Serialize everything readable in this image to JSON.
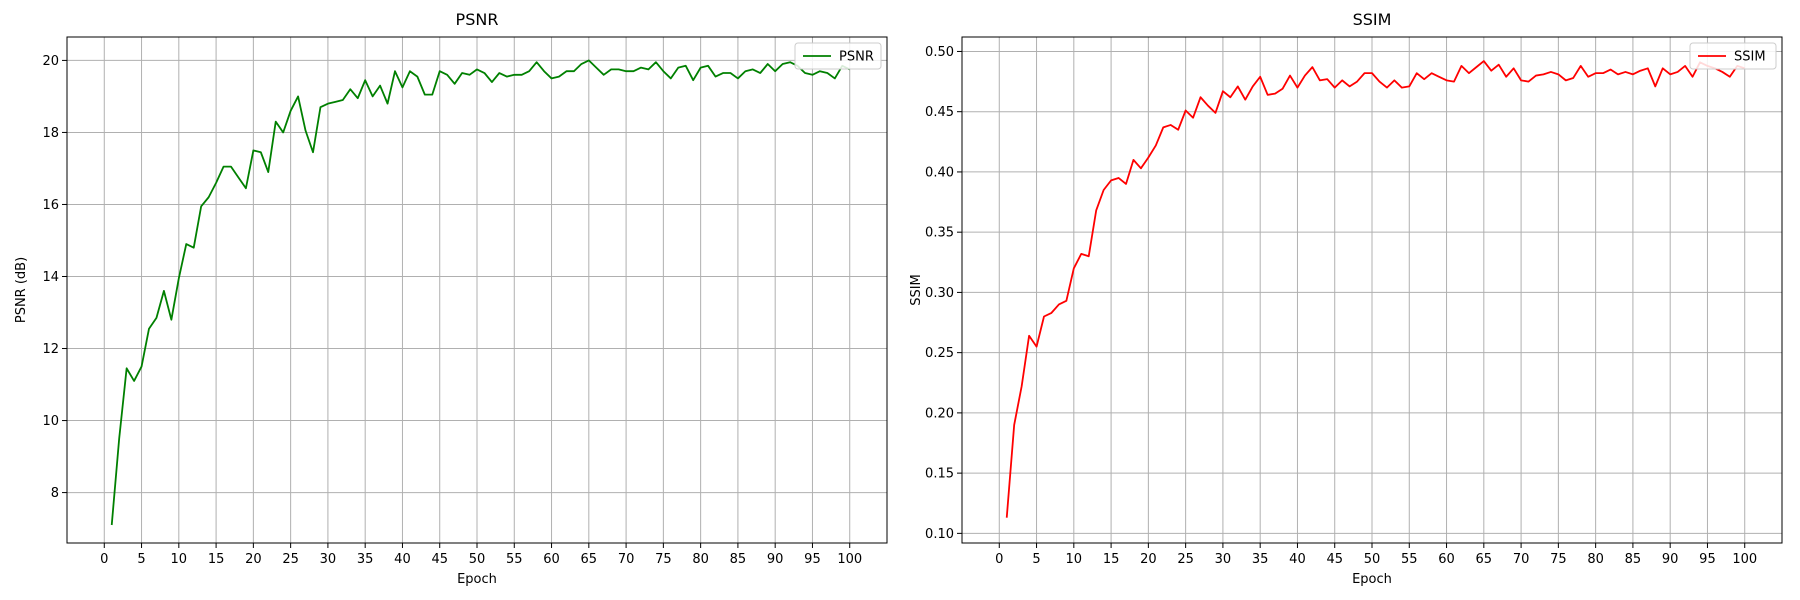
{
  "chart_data": [
    {
      "type": "line",
      "title": "PSNR",
      "xlabel": "Epoch",
      "ylabel": "PSNR (dB)",
      "xlim": [
        -5,
        105
      ],
      "ylim": [
        6.6,
        20.65
      ],
      "xticks": [
        0,
        5,
        10,
        15,
        20,
        25,
        30,
        35,
        40,
        45,
        50,
        55,
        60,
        65,
        70,
        75,
        80,
        85,
        90,
        95,
        100
      ],
      "yticks": [
        8,
        10,
        12,
        14,
        16,
        18,
        20
      ],
      "ytick_labels": [
        "8",
        "10",
        "12",
        "14",
        "16",
        "18",
        "20"
      ],
      "grid": true,
      "legend_position": "upper right",
      "series": [
        {
          "name": "PSNR",
          "color": "#008000",
          "x": [
            1,
            2,
            3,
            4,
            5,
            6,
            7,
            8,
            9,
            10,
            11,
            12,
            13,
            14,
            15,
            16,
            17,
            18,
            19,
            20,
            21,
            22,
            23,
            24,
            25,
            26,
            27,
            28,
            29,
            30,
            31,
            32,
            33,
            34,
            35,
            36,
            37,
            38,
            39,
            40,
            41,
            42,
            43,
            44,
            45,
            46,
            47,
            48,
            49,
            50,
            51,
            52,
            53,
            54,
            55,
            56,
            57,
            58,
            59,
            60,
            61,
            62,
            63,
            64,
            65,
            66,
            67,
            68,
            69,
            70,
            71,
            72,
            73,
            74,
            75,
            76,
            77,
            78,
            79,
            80,
            81,
            82,
            83,
            84,
            85,
            86,
            87,
            88,
            89,
            90,
            91,
            92,
            93,
            94,
            95,
            96,
            97,
            98,
            99,
            100
          ],
          "y": [
            7.1,
            9.5,
            11.45,
            11.1,
            11.5,
            12.55,
            12.85,
            13.6,
            12.8,
            13.95,
            14.9,
            14.8,
            15.95,
            16.2,
            16.6,
            17.05,
            17.05,
            16.75,
            16.45,
            17.5,
            17.45,
            16.9,
            18.3,
            18.0,
            18.6,
            19.0,
            18.05,
            17.45,
            18.7,
            18.8,
            18.85,
            18.9,
            19.2,
            18.95,
            19.45,
            19.0,
            19.3,
            18.8,
            19.7,
            19.25,
            19.7,
            19.55,
            19.05,
            19.05,
            19.7,
            19.6,
            19.35,
            19.65,
            19.6,
            19.75,
            19.65,
            19.4,
            19.65,
            19.55,
            19.6,
            19.6,
            19.7,
            19.95,
            19.7,
            19.5,
            19.55,
            19.7,
            19.7,
            19.9,
            20.0,
            19.8,
            19.6,
            19.75,
            19.75,
            19.7,
            19.7,
            19.8,
            19.75,
            19.95,
            19.7,
            19.5,
            19.8,
            19.85,
            19.45,
            19.8,
            19.85,
            19.55,
            19.65,
            19.65,
            19.5,
            19.7,
            19.75,
            19.65,
            19.9,
            19.7,
            19.9,
            19.95,
            19.85,
            19.65,
            19.6,
            19.7,
            19.65,
            19.5,
            19.85,
            19.75
          ]
        }
      ]
    },
    {
      "type": "line",
      "title": "SSIM",
      "xlabel": "Epoch",
      "ylabel": "SSIM",
      "xlim": [
        -5,
        105
      ],
      "ylim": [
        0.092,
        0.512
      ],
      "xticks": [
        0,
        5,
        10,
        15,
        20,
        25,
        30,
        35,
        40,
        45,
        50,
        55,
        60,
        65,
        70,
        75,
        80,
        85,
        90,
        95,
        100
      ],
      "yticks": [
        0.1,
        0.15,
        0.2,
        0.25,
        0.3,
        0.35,
        0.4,
        0.45,
        0.5
      ],
      "ytick_labels": [
        "0.10",
        "0.15",
        "0.20",
        "0.25",
        "0.30",
        "0.35",
        "0.40",
        "0.45",
        "0.50"
      ],
      "grid": true,
      "legend_position": "upper right",
      "series": [
        {
          "name": "SSIM",
          "color": "#ff0000",
          "x": [
            1,
            2,
            3,
            4,
            5,
            6,
            7,
            8,
            9,
            10,
            11,
            12,
            13,
            14,
            15,
            16,
            17,
            18,
            19,
            20,
            21,
            22,
            23,
            24,
            25,
            26,
            27,
            28,
            29,
            30,
            31,
            32,
            33,
            34,
            35,
            36,
            37,
            38,
            39,
            40,
            41,
            42,
            43,
            44,
            45,
            46,
            47,
            48,
            49,
            50,
            51,
            52,
            53,
            54,
            55,
            56,
            57,
            58,
            59,
            60,
            61,
            62,
            63,
            64,
            65,
            66,
            67,
            68,
            69,
            70,
            71,
            72,
            73,
            74,
            75,
            76,
            77,
            78,
            79,
            80,
            81,
            82,
            83,
            84,
            85,
            86,
            87,
            88,
            89,
            90,
            91,
            92,
            93,
            94,
            95,
            96,
            97,
            98,
            99,
            100
          ],
          "y": [
            0.113,
            0.19,
            0.222,
            0.264,
            0.255,
            0.28,
            0.283,
            0.29,
            0.293,
            0.32,
            0.332,
            0.33,
            0.368,
            0.385,
            0.393,
            0.395,
            0.39,
            0.41,
            0.403,
            0.412,
            0.422,
            0.437,
            0.439,
            0.435,
            0.451,
            0.445,
            0.462,
            0.455,
            0.449,
            0.467,
            0.462,
            0.471,
            0.46,
            0.471,
            0.479,
            0.464,
            0.465,
            0.469,
            0.48,
            0.47,
            0.48,
            0.487,
            0.476,
            0.477,
            0.47,
            0.476,
            0.471,
            0.475,
            0.482,
            0.482,
            0.475,
            0.47,
            0.476,
            0.47,
            0.471,
            0.482,
            0.477,
            0.482,
            0.479,
            0.476,
            0.475,
            0.488,
            0.482,
            0.487,
            0.492,
            0.484,
            0.489,
            0.479,
            0.486,
            0.476,
            0.475,
            0.48,
            0.481,
            0.483,
            0.481,
            0.476,
            0.478,
            0.488,
            0.479,
            0.482,
            0.482,
            0.485,
            0.481,
            0.483,
            0.481,
            0.484,
            0.486,
            0.471,
            0.486,
            0.481,
            0.483,
            0.488,
            0.479,
            0.491,
            0.488,
            0.486,
            0.483,
            0.479,
            0.488,
            0.486
          ]
        }
      ]
    }
  ]
}
